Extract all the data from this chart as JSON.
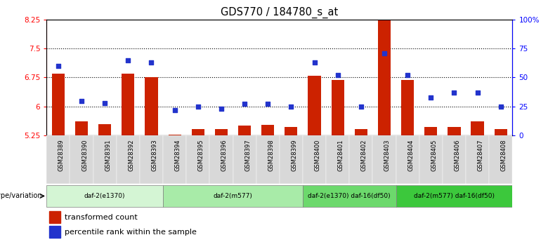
{
  "title": "GDS770 / 184780_s_at",
  "samples": [
    "GSM28389",
    "GSM28390",
    "GSM28391",
    "GSM28392",
    "GSM28393",
    "GSM28394",
    "GSM28395",
    "GSM28396",
    "GSM28397",
    "GSM28398",
    "GSM28399",
    "GSM28400",
    "GSM28401",
    "GSM28402",
    "GSM28403",
    "GSM28404",
    "GSM28405",
    "GSM28406",
    "GSM28407",
    "GSM28408"
  ],
  "red_values": [
    6.85,
    5.62,
    5.55,
    6.85,
    6.75,
    5.27,
    5.42,
    5.42,
    5.5,
    5.52,
    5.47,
    6.8,
    6.68,
    5.42,
    8.28,
    6.68,
    5.48,
    5.47,
    5.62,
    5.42
  ],
  "blue_values": [
    60,
    30,
    28,
    65,
    63,
    22,
    25,
    23,
    27,
    27,
    25,
    63,
    52,
    25,
    71,
    52,
    33,
    37,
    37,
    25
  ],
  "ylim_left": [
    5.25,
    8.25
  ],
  "ylim_right": [
    0,
    100
  ],
  "yticks_left": [
    5.25,
    6.0,
    6.75,
    7.5,
    8.25
  ],
  "ytick_labels_left": [
    "5.25",
    "6",
    "6.75",
    "7.5",
    "8.25"
  ],
  "yticks_right": [
    0,
    25,
    50,
    75,
    100
  ],
  "ytick_labels_right": [
    "0",
    "25",
    "50",
    "75",
    "100%"
  ],
  "hlines": [
    6.0,
    6.75,
    7.5
  ],
  "groups": [
    {
      "label": "daf-2(e1370)",
      "start": 0,
      "end": 5,
      "color": "#d4f5d4"
    },
    {
      "label": "daf-2(m577)",
      "start": 5,
      "end": 11,
      "color": "#a8eba8"
    },
    {
      "label": "daf-2(e1370) daf-16(df50)",
      "start": 11,
      "end": 15,
      "color": "#6cd96c"
    },
    {
      "label": "daf-2(m577) daf-16(df50)",
      "start": 15,
      "end": 20,
      "color": "#3cc83c"
    }
  ],
  "bar_color": "#cc2200",
  "dot_color": "#2233cc",
  "bar_width": 0.55,
  "genotype_label": "genotype/variation",
  "legend_red": "transformed count",
  "legend_blue": "percentile rank within the sample",
  "tick_bg_color": "#d8d8d8"
}
